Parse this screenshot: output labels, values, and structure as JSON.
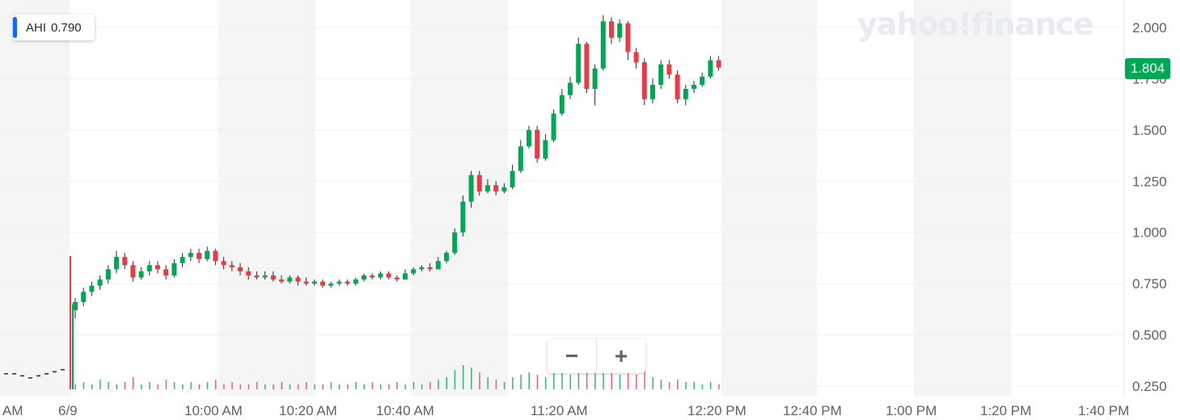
{
  "ticker": {
    "symbol": "AHI",
    "value": "0.790",
    "color": "#0f69ff"
  },
  "logo_text": "yahoo!finance",
  "current_price": {
    "label": "1.804",
    "color": "#00a854"
  },
  "zoom": {
    "out_label": "−",
    "in_label": "+"
  },
  "chart_data": {
    "type": "candlestick",
    "x_tick_labels": [
      "AM",
      "6/9",
      "10:00 AM",
      "10:20 AM",
      "10:40 AM",
      "11:20 AM",
      "12:20 PM",
      "12:40 PM",
      "1:00 PM",
      "1:20 PM",
      "1:40 PM"
    ],
    "y_tick_labels": [
      "0.250",
      "0.500",
      "0.750",
      "1.000",
      "1.250",
      "1.500",
      "1.750",
      "2.000"
    ],
    "ylim": [
      0.22,
      2.08
    ],
    "up_color": "#00a854",
    "down_color": "#eb3a43",
    "premarket_line": [
      0.31,
      0.31,
      0.3,
      0.29,
      0.3,
      0.31,
      0.32,
      0.33
    ],
    "candles": [
      [
        0.62,
        0.66,
        0.58,
        0.68
      ],
      [
        0.66,
        0.71,
        0.64,
        0.73
      ],
      [
        0.71,
        0.74,
        0.69,
        0.76
      ],
      [
        0.74,
        0.77,
        0.72,
        0.79
      ],
      [
        0.77,
        0.82,
        0.75,
        0.84
      ],
      [
        0.82,
        0.88,
        0.8,
        0.91
      ],
      [
        0.88,
        0.84,
        0.82,
        0.9
      ],
      [
        0.84,
        0.78,
        0.76,
        0.86
      ],
      [
        0.78,
        0.81,
        0.77,
        0.83
      ],
      [
        0.81,
        0.84,
        0.79,
        0.86
      ],
      [
        0.84,
        0.82,
        0.8,
        0.86
      ],
      [
        0.82,
        0.79,
        0.77,
        0.84
      ],
      [
        0.79,
        0.85,
        0.78,
        0.87
      ],
      [
        0.85,
        0.88,
        0.83,
        0.9
      ],
      [
        0.88,
        0.9,
        0.86,
        0.92
      ],
      [
        0.9,
        0.87,
        0.85,
        0.92
      ],
      [
        0.87,
        0.91,
        0.86,
        0.93
      ],
      [
        0.91,
        0.86,
        0.84,
        0.92
      ],
      [
        0.86,
        0.84,
        0.82,
        0.88
      ],
      [
        0.84,
        0.83,
        0.81,
        0.86
      ],
      [
        0.83,
        0.81,
        0.79,
        0.85
      ],
      [
        0.81,
        0.79,
        0.77,
        0.83
      ],
      [
        0.79,
        0.78,
        0.77,
        0.81
      ],
      [
        0.78,
        0.79,
        0.77,
        0.81
      ],
      [
        0.79,
        0.77,
        0.76,
        0.81
      ],
      [
        0.77,
        0.76,
        0.75,
        0.79
      ],
      [
        0.76,
        0.78,
        0.75,
        0.79
      ],
      [
        0.78,
        0.76,
        0.74,
        0.79
      ],
      [
        0.76,
        0.75,
        0.74,
        0.78
      ],
      [
        0.75,
        0.76,
        0.74,
        0.77
      ],
      [
        0.76,
        0.74,
        0.73,
        0.77
      ],
      [
        0.74,
        0.75,
        0.73,
        0.76
      ],
      [
        0.75,
        0.76,
        0.74,
        0.77
      ],
      [
        0.76,
        0.75,
        0.74,
        0.77
      ],
      [
        0.75,
        0.77,
        0.74,
        0.78
      ],
      [
        0.77,
        0.79,
        0.76,
        0.8
      ],
      [
        0.79,
        0.78,
        0.77,
        0.8
      ],
      [
        0.78,
        0.8,
        0.77,
        0.81
      ],
      [
        0.8,
        0.78,
        0.77,
        0.81
      ],
      [
        0.78,
        0.77,
        0.76,
        0.79
      ],
      [
        0.77,
        0.8,
        0.77,
        0.82
      ],
      [
        0.8,
        0.82,
        0.79,
        0.83
      ],
      [
        0.82,
        0.83,
        0.81,
        0.84
      ],
      [
        0.83,
        0.82,
        0.81,
        0.85
      ],
      [
        0.82,
        0.86,
        0.82,
        0.88
      ],
      [
        0.86,
        0.9,
        0.85,
        0.91
      ],
      [
        0.9,
        1.0,
        0.89,
        1.02
      ],
      [
        1.0,
        1.15,
        0.98,
        1.18
      ],
      [
        1.15,
        1.28,
        1.12,
        1.3
      ],
      [
        1.28,
        1.2,
        1.18,
        1.3
      ],
      [
        1.2,
        1.23,
        1.19,
        1.26
      ],
      [
        1.23,
        1.2,
        1.18,
        1.25
      ],
      [
        1.2,
        1.22,
        1.19,
        1.24
      ],
      [
        1.22,
        1.3,
        1.21,
        1.33
      ],
      [
        1.3,
        1.42,
        1.29,
        1.45
      ],
      [
        1.42,
        1.5,
        1.41,
        1.52
      ],
      [
        1.5,
        1.36,
        1.34,
        1.52
      ],
      [
        1.36,
        1.45,
        1.35,
        1.48
      ],
      [
        1.45,
        1.58,
        1.44,
        1.6
      ],
      [
        1.58,
        1.67,
        1.57,
        1.7
      ],
      [
        1.67,
        1.73,
        1.65,
        1.76
      ],
      [
        1.73,
        1.92,
        1.72,
        1.95
      ],
      [
        1.92,
        1.7,
        1.68,
        1.93
      ],
      [
        1.7,
        1.8,
        1.62,
        1.82
      ],
      [
        1.8,
        2.03,
        1.79,
        2.06
      ],
      [
        2.03,
        1.95,
        1.92,
        2.05
      ],
      [
        1.95,
        2.02,
        1.93,
        2.04
      ],
      [
        2.02,
        1.88,
        1.84,
        2.03
      ],
      [
        1.88,
        1.83,
        1.8,
        1.9
      ],
      [
        1.83,
        1.65,
        1.62,
        1.85
      ],
      [
        1.65,
        1.72,
        1.63,
        1.75
      ],
      [
        1.72,
        1.82,
        1.7,
        1.84
      ],
      [
        1.82,
        1.77,
        1.75,
        1.84
      ],
      [
        1.77,
        1.65,
        1.63,
        1.79
      ],
      [
        1.65,
        1.7,
        1.62,
        1.72
      ],
      [
        1.7,
        1.72,
        1.68,
        1.74
      ],
      [
        1.72,
        1.76,
        1.71,
        1.78
      ],
      [
        1.76,
        1.84,
        1.75,
        1.86
      ],
      [
        1.84,
        1.804,
        1.79,
        1.86
      ]
    ],
    "volume": [
      0.02,
      0.03,
      0.02,
      0.04,
      0.03,
      0.02,
      0.03,
      0.05,
      0.02,
      0.03,
      0.02,
      0.04,
      0.03,
      0.02,
      0.03,
      0.02,
      0.03,
      0.04,
      0.02,
      0.03,
      0.02,
      0.02,
      0.03,
      0.02,
      0.02,
      0.03,
      0.02,
      0.02,
      0.03,
      0.02,
      0.02,
      0.03,
      0.02,
      0.02,
      0.03,
      0.02,
      0.03,
      0.02,
      0.02,
      0.03,
      0.02,
      0.03,
      0.02,
      0.03,
      0.04,
      0.05,
      0.08,
      0.1,
      0.09,
      0.07,
      0.05,
      0.04,
      0.03,
      0.05,
      0.06,
      0.07,
      0.06,
      0.05,
      0.07,
      0.08,
      0.06,
      0.09,
      0.1,
      0.08,
      0.11,
      0.07,
      0.06,
      0.08,
      0.06,
      0.09,
      0.05,
      0.04,
      0.03,
      0.04,
      0.03,
      0.03,
      0.02,
      0.03,
      0.02
    ],
    "first_volume_spike": 0.55
  }
}
